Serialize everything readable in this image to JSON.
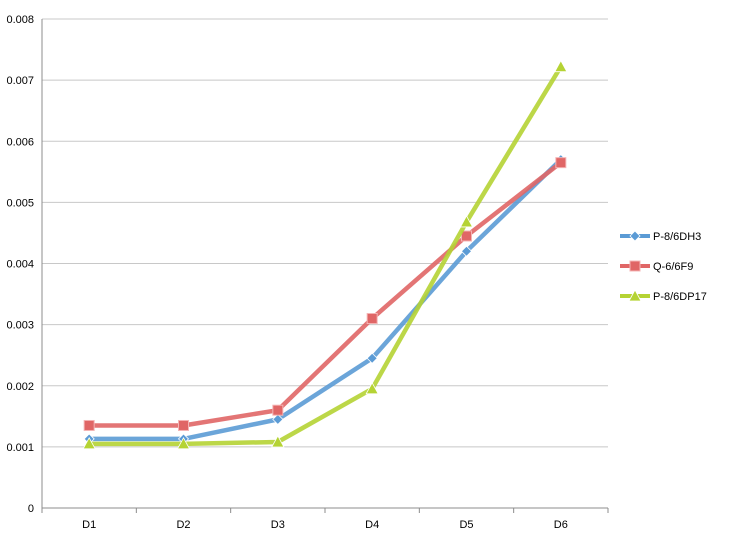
{
  "chart_data": {
    "type": "line",
    "title": "",
    "xlabel": "",
    "ylabel": "",
    "categories": [
      "D1",
      "D2",
      "D3",
      "D4",
      "D5",
      "D6"
    ],
    "ylim": [
      0,
      0.008
    ],
    "yticks": [
      "0",
      "0.001",
      "0.002",
      "0.003",
      "0.004",
      "0.005",
      "0.006",
      "0.007",
      "0.008"
    ],
    "grid": "horizontal",
    "legend_position": "right",
    "series": [
      {
        "name": "P-8/6DH3",
        "color": "#5b9bd5",
        "marker": "diamond",
        "values": [
          0.00113,
          0.00113,
          0.00145,
          0.00245,
          0.0042,
          0.0057
        ]
      },
      {
        "name": "Q-6/6F9",
        "color": "#e06666",
        "marker": "square",
        "values": [
          0.00135,
          0.00135,
          0.0016,
          0.0031,
          0.00445,
          0.00565
        ]
      },
      {
        "name": "P-8/6DP17",
        "color": "#b5d334",
        "marker": "triangle",
        "values": [
          0.00105,
          0.00105,
          0.00108,
          0.00195,
          0.00468,
          0.00722
        ]
      }
    ]
  }
}
